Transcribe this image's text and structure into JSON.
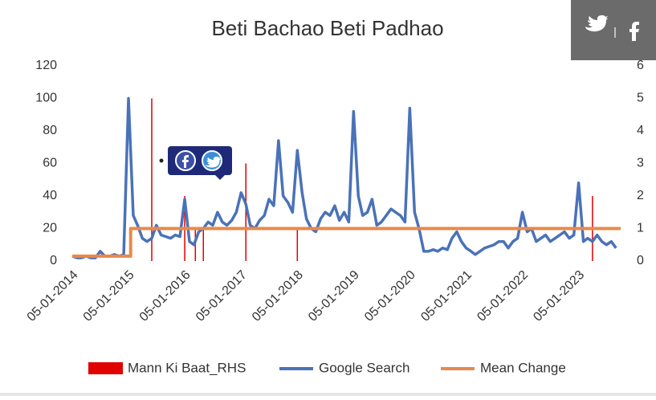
{
  "chart_data": {
    "type": "line",
    "title": "Beti Bachao Beti Padhao",
    "xlim": [
      "2014-01-01",
      "2023-10-01"
    ],
    "xticks": [
      {
        "value": "2014-01-05",
        "label": "05-01-2014"
      },
      {
        "value": "2015-01-05",
        "label": "05-01-2015"
      },
      {
        "value": "2016-01-05",
        "label": "05-01-2016"
      },
      {
        "value": "2017-01-05",
        "label": "05-01-2017"
      },
      {
        "value": "2018-01-05",
        "label": "05-01-2018"
      },
      {
        "value": "2019-01-05",
        "label": "05-01-2019"
      },
      {
        "value": "2020-01-05",
        "label": "05-01-2020"
      },
      {
        "value": "2021-01-05",
        "label": "05-01-2021"
      },
      {
        "value": "2022-01-05",
        "label": "05-01-2022"
      },
      {
        "value": "2023-01-05",
        "label": "05-01-2023"
      }
    ],
    "ylim": [
      0,
      120
    ],
    "yticks": [
      0,
      20,
      40,
      60,
      80,
      100,
      120
    ],
    "y2lim": [
      0,
      6
    ],
    "y2ticks": [
      0,
      1,
      2,
      3,
      4,
      5,
      6
    ],
    "grid": false,
    "legend": "bottom",
    "series": [
      {
        "name": "Mann Ki Baat_RHS",
        "type": "bar",
        "axis": "y2",
        "color": "#e00000",
        "x": [
          "2015-06-01",
          "2016-01-01",
          "2016-03-10",
          "2016-05-01",
          "2017-02-01",
          "2018-01-01",
          "2023-04-01"
        ],
        "values": [
          5,
          2,
          1,
          1,
          3,
          1,
          2
        ]
      },
      {
        "name": "Google Search",
        "type": "line",
        "color": "#4a72b8",
        "x": [
          "2014-01-01",
          "2014-02-01",
          "2014-03-01",
          "2014-04-01",
          "2014-05-01",
          "2014-06-01",
          "2014-07-01",
          "2014-08-01",
          "2014-09-01",
          "2014-10-01",
          "2014-11-01",
          "2014-12-01",
          "2015-01-01",
          "2015-02-01",
          "2015-03-01",
          "2015-04-01",
          "2015-05-01",
          "2015-06-01",
          "2015-07-01",
          "2015-08-01",
          "2015-09-01",
          "2015-10-01",
          "2015-11-01",
          "2015-12-01",
          "2016-01-01",
          "2016-02-01",
          "2016-03-01",
          "2016-04-01",
          "2016-05-01",
          "2016-06-01",
          "2016-07-01",
          "2016-08-01",
          "2016-09-01",
          "2016-10-01",
          "2016-11-01",
          "2016-12-01",
          "2017-01-01",
          "2017-02-01",
          "2017-03-01",
          "2017-04-01",
          "2017-05-01",
          "2017-06-01",
          "2017-07-01",
          "2017-08-01",
          "2017-09-01",
          "2017-10-01",
          "2017-11-01",
          "2017-12-01",
          "2018-01-01",
          "2018-02-01",
          "2018-03-01",
          "2018-04-01",
          "2018-05-01",
          "2018-06-01",
          "2018-07-01",
          "2018-08-01",
          "2018-09-01",
          "2018-10-01",
          "2018-11-01",
          "2018-12-01",
          "2019-01-01",
          "2019-02-01",
          "2019-03-01",
          "2019-04-01",
          "2019-05-01",
          "2019-06-01",
          "2019-07-01",
          "2019-08-01",
          "2019-09-01",
          "2019-10-01",
          "2019-11-01",
          "2019-12-01",
          "2020-01-01",
          "2020-02-01",
          "2020-03-01",
          "2020-04-01",
          "2020-05-01",
          "2020-06-01",
          "2020-07-01",
          "2020-08-01",
          "2020-09-01",
          "2020-10-01",
          "2020-11-01",
          "2020-12-01",
          "2021-01-01",
          "2021-02-01",
          "2021-03-01",
          "2021-04-01",
          "2021-05-01",
          "2021-06-01",
          "2021-07-01",
          "2021-08-01",
          "2021-09-01",
          "2021-10-01",
          "2021-11-01",
          "2021-12-01",
          "2022-01-01",
          "2022-02-01",
          "2022-03-01",
          "2022-04-01",
          "2022-05-01",
          "2022-06-01",
          "2022-07-01",
          "2022-08-01",
          "2022-09-01",
          "2022-10-01",
          "2022-11-01",
          "2022-12-01",
          "2023-01-01",
          "2023-02-01",
          "2023-03-01",
          "2023-04-01",
          "2023-05-01",
          "2023-06-01",
          "2023-07-01",
          "2023-08-01",
          "2023-09-01"
        ],
        "values": [
          3,
          2,
          2,
          3,
          2,
          2,
          6,
          3,
          3,
          4,
          3,
          4,
          100,
          28,
          22,
          14,
          12,
          14,
          22,
          16,
          15,
          14,
          16,
          15,
          38,
          12,
          10,
          18,
          20,
          24,
          22,
          30,
          24,
          22,
          25,
          30,
          42,
          35,
          22,
          20,
          25,
          28,
          38,
          34,
          74,
          40,
          36,
          30,
          68,
          42,
          26,
          20,
          18,
          26,
          30,
          28,
          34,
          25,
          30,
          24,
          92,
          40,
          28,
          30,
          38,
          22,
          24,
          28,
          32,
          30,
          28,
          24,
          94,
          30,
          20,
          6,
          6,
          7,
          6,
          8,
          7,
          14,
          18,
          12,
          8,
          6,
          4,
          6,
          8,
          9,
          10,
          12,
          12,
          8,
          12,
          14,
          30,
          18,
          20,
          12,
          14,
          16,
          12,
          14,
          16,
          18,
          14,
          16,
          48,
          12,
          14,
          12,
          16,
          12,
          10,
          12,
          8
        ]
      },
      {
        "name": "Mean Change",
        "type": "line",
        "color": "#e8894a",
        "x": [
          "2014-01-01",
          "2015-01-15",
          "2015-01-15",
          "2023-10-01"
        ],
        "values": [
          3,
          3,
          20,
          20
        ]
      }
    ]
  }
}
